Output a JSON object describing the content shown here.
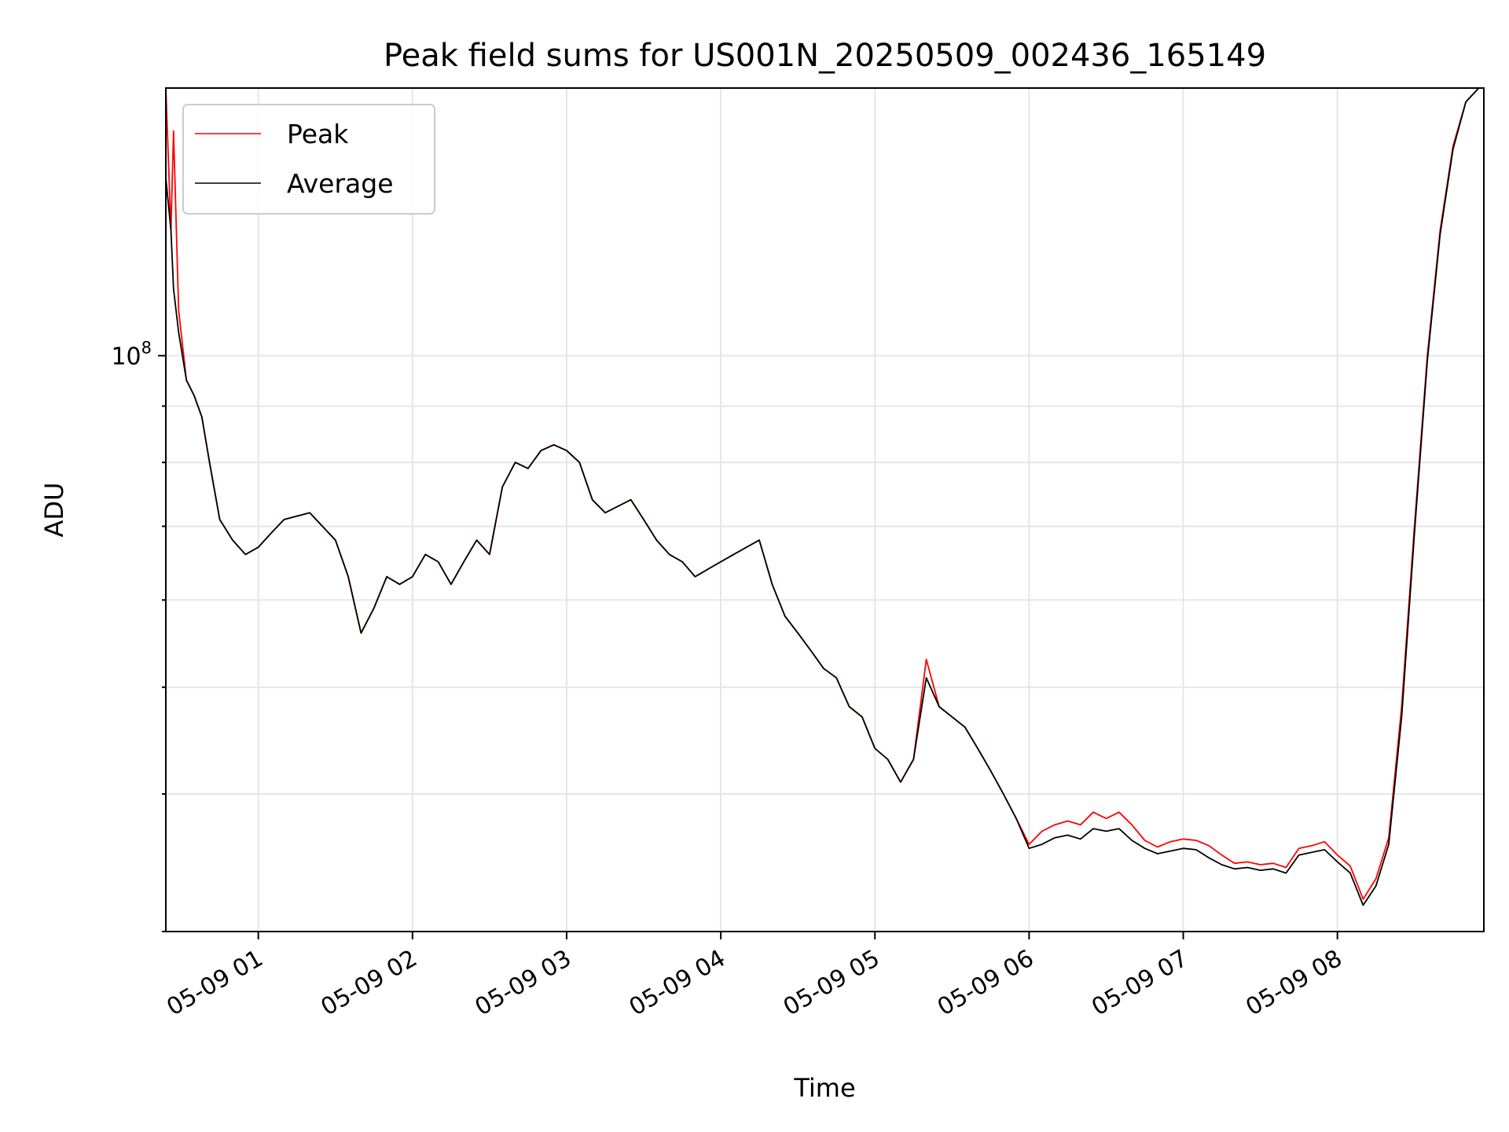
{
  "chart_data": {
    "type": "line",
    "title": "Peak field sums for US001N_20250509_002436_165149",
    "xlabel": "Time",
    "ylabel": "ADU",
    "yscale": "log",
    "grid": true,
    "legend_placement": "top-left",
    "xlim": [
      "2025-05-09 00:24",
      "2025-05-09 08:57"
    ],
    "ylim": [
      30000000,
      175000000
    ],
    "x_ticks": [
      "05-09 01",
      "05-09 02",
      "05-09 03",
      "05-09 04",
      "05-09 05",
      "05-09 06",
      "05-09 07",
      "05-09 08"
    ],
    "y_ticks": [
      {
        "value": 100000000,
        "label": "10",
        "exponent": "8"
      }
    ],
    "series": [
      {
        "name": "Peak",
        "color": "#ff0000",
        "x": [
          "2025-05-09 00:24",
          "2025-05-09 00:26",
          "2025-05-09 00:27",
          "2025-05-09 00:29",
          "2025-05-09 00:32",
          "2025-05-09 00:35",
          "2025-05-09 00:38",
          "2025-05-09 00:41",
          "2025-05-09 00:45",
          "2025-05-09 00:50",
          "2025-05-09 00:55",
          "2025-05-09 01:00",
          "2025-05-09 01:05",
          "2025-05-09 01:10",
          "2025-05-09 01:20",
          "2025-05-09 01:30",
          "2025-05-09 01:35",
          "2025-05-09 01:40",
          "2025-05-09 01:45",
          "2025-05-09 01:50",
          "2025-05-09 01:55",
          "2025-05-09 02:00",
          "2025-05-09 02:05",
          "2025-05-09 02:10",
          "2025-05-09 02:15",
          "2025-05-09 02:20",
          "2025-05-09 02:25",
          "2025-05-09 02:30",
          "2025-05-09 02:35",
          "2025-05-09 02:40",
          "2025-05-09 02:45",
          "2025-05-09 02:50",
          "2025-05-09 02:55",
          "2025-05-09 03:00",
          "2025-05-09 03:05",
          "2025-05-09 03:10",
          "2025-05-09 03:15",
          "2025-05-09 03:20",
          "2025-05-09 03:25",
          "2025-05-09 03:30",
          "2025-05-09 03:35",
          "2025-05-09 03:40",
          "2025-05-09 03:45",
          "2025-05-09 03:50",
          "2025-05-09 03:55",
          "2025-05-09 04:00",
          "2025-05-09 04:05",
          "2025-05-09 04:10",
          "2025-05-09 04:15",
          "2025-05-09 04:20",
          "2025-05-09 04:25",
          "2025-05-09 04:30",
          "2025-05-09 04:35",
          "2025-05-09 04:40",
          "2025-05-09 04:45",
          "2025-05-09 04:50",
          "2025-05-09 04:55",
          "2025-05-09 05:00",
          "2025-05-09 05:05",
          "2025-05-09 05:10",
          "2025-05-09 05:15",
          "2025-05-09 05:20",
          "2025-05-09 05:25",
          "2025-05-09 05:30",
          "2025-05-09 05:35",
          "2025-05-09 05:40",
          "2025-05-09 05:45",
          "2025-05-09 05:50",
          "2025-05-09 05:55",
          "2025-05-09 06:00",
          "2025-05-09 06:05",
          "2025-05-09 06:10",
          "2025-05-09 06:15",
          "2025-05-09 06:20",
          "2025-05-09 06:25",
          "2025-05-09 06:30",
          "2025-05-09 06:35",
          "2025-05-09 06:40",
          "2025-05-09 06:45",
          "2025-05-09 06:50",
          "2025-05-09 06:55",
          "2025-05-09 07:00",
          "2025-05-09 07:05",
          "2025-05-09 07:10",
          "2025-05-09 07:15",
          "2025-05-09 07:20",
          "2025-05-09 07:25",
          "2025-05-09 07:30",
          "2025-05-09 07:35",
          "2025-05-09 07:40",
          "2025-05-09 07:45",
          "2025-05-09 07:50",
          "2025-05-09 07:55",
          "2025-05-09 08:00",
          "2025-05-09 08:05",
          "2025-05-09 08:10",
          "2025-05-09 08:15",
          "2025-05-09 08:20",
          "2025-05-09 08:25",
          "2025-05-09 08:30",
          "2025-05-09 08:35",
          "2025-05-09 08:40",
          "2025-05-09 08:45",
          "2025-05-09 08:50",
          "2025-05-09 08:55",
          "2025-05-09 08:57"
        ],
        "y": [
          175000000,
          130000000,
          160000000,
          110000000,
          95000000,
          92000000,
          88000000,
          80000000,
          71000000,
          68000000,
          66000000,
          67000000,
          69000000,
          71000000,
          72000000,
          68000000,
          63000000,
          56000000,
          59000000,
          63000000,
          62000000,
          63000000,
          66000000,
          65000000,
          62000000,
          65000000,
          68000000,
          66000000,
          76000000,
          80000000,
          79000000,
          82000000,
          83000000,
          82000000,
          80000000,
          74000000,
          72000000,
          73000000,
          74000000,
          71000000,
          68000000,
          66000000,
          65000000,
          63000000,
          64000000,
          65000000,
          66000000,
          67000000,
          68000000,
          62000000,
          58000000,
          56000000,
          54000000,
          52000000,
          51000000,
          48000000,
          47000000,
          44000000,
          43000000,
          41000000,
          43000000,
          53000000,
          48000000,
          47000000,
          46000000,
          44000000,
          42000000,
          40000000,
          38000000,
          36000000,
          37000000,
          37500000,
          37800000,
          37500000,
          38500000,
          38000000,
          38500000,
          37500000,
          36300000,
          35800000,
          36200000,
          36400000,
          36300000,
          35900000,
          35200000,
          34600000,
          34700000,
          34500000,
          34600000,
          34300000,
          35700000,
          35900000,
          36200000,
          35200000,
          34400000,
          32100000,
          33500000,
          36500000,
          48000000,
          70000000,
          100000000,
          130000000,
          155000000,
          170000000,
          175000000,
          175000000
        ]
      },
      {
        "name": "Average",
        "color": "#000000",
        "x": [
          "2025-05-09 00:24",
          "2025-05-09 00:26",
          "2025-05-09 00:27",
          "2025-05-09 00:29",
          "2025-05-09 00:32",
          "2025-05-09 00:35",
          "2025-05-09 00:38",
          "2025-05-09 00:41",
          "2025-05-09 00:45",
          "2025-05-09 00:50",
          "2025-05-09 00:55",
          "2025-05-09 01:00",
          "2025-05-09 01:05",
          "2025-05-09 01:10",
          "2025-05-09 01:20",
          "2025-05-09 01:30",
          "2025-05-09 01:35",
          "2025-05-09 01:40",
          "2025-05-09 01:45",
          "2025-05-09 01:50",
          "2025-05-09 01:55",
          "2025-05-09 02:00",
          "2025-05-09 02:05",
          "2025-05-09 02:10",
          "2025-05-09 02:15",
          "2025-05-09 02:20",
          "2025-05-09 02:25",
          "2025-05-09 02:30",
          "2025-05-09 02:35",
          "2025-05-09 02:40",
          "2025-05-09 02:45",
          "2025-05-09 02:50",
          "2025-05-09 02:55",
          "2025-05-09 03:00",
          "2025-05-09 03:05",
          "2025-05-09 03:10",
          "2025-05-09 03:15",
          "2025-05-09 03:20",
          "2025-05-09 03:25",
          "2025-05-09 03:30",
          "2025-05-09 03:35",
          "2025-05-09 03:40",
          "2025-05-09 03:45",
          "2025-05-09 03:50",
          "2025-05-09 03:55",
          "2025-05-09 04:00",
          "2025-05-09 04:05",
          "2025-05-09 04:10",
          "2025-05-09 04:15",
          "2025-05-09 04:20",
          "2025-05-09 04:25",
          "2025-05-09 04:30",
          "2025-05-09 04:35",
          "2025-05-09 04:40",
          "2025-05-09 04:45",
          "2025-05-09 04:50",
          "2025-05-09 04:55",
          "2025-05-09 05:00",
          "2025-05-09 05:05",
          "2025-05-09 05:10",
          "2025-05-09 05:15",
          "2025-05-09 05:20",
          "2025-05-09 05:25",
          "2025-05-09 05:30",
          "2025-05-09 05:35",
          "2025-05-09 05:40",
          "2025-05-09 05:45",
          "2025-05-09 05:50",
          "2025-05-09 05:55",
          "2025-05-09 06:00",
          "2025-05-09 06:05",
          "2025-05-09 06:10",
          "2025-05-09 06:15",
          "2025-05-09 06:20",
          "2025-05-09 06:25",
          "2025-05-09 06:30",
          "2025-05-09 06:35",
          "2025-05-09 06:40",
          "2025-05-09 06:45",
          "2025-05-09 06:50",
          "2025-05-09 06:55",
          "2025-05-09 07:00",
          "2025-05-09 07:05",
          "2025-05-09 07:10",
          "2025-05-09 07:15",
          "2025-05-09 07:20",
          "2025-05-09 07:25",
          "2025-05-09 07:30",
          "2025-05-09 07:35",
          "2025-05-09 07:40",
          "2025-05-09 07:45",
          "2025-05-09 07:50",
          "2025-05-09 07:55",
          "2025-05-09 08:00",
          "2025-05-09 08:05",
          "2025-05-09 08:10",
          "2025-05-09 08:15",
          "2025-05-09 08:20",
          "2025-05-09 08:25",
          "2025-05-09 08:30",
          "2025-05-09 08:35",
          "2025-05-09 08:40",
          "2025-05-09 08:45",
          "2025-05-09 08:50",
          "2025-05-09 08:55",
          "2025-05-09 08:57"
        ],
        "y": [
          145000000,
          130000000,
          115000000,
          105000000,
          95000000,
          92000000,
          88000000,
          80000000,
          71000000,
          68000000,
          66000000,
          67000000,
          69000000,
          71000000,
          72000000,
          68000000,
          63000000,
          56000000,
          59000000,
          63000000,
          62000000,
          63000000,
          66000000,
          65000000,
          62000000,
          65000000,
          68000000,
          66000000,
          76000000,
          80000000,
          79000000,
          82000000,
          83000000,
          82000000,
          80000000,
          74000000,
          72000000,
          73000000,
          74000000,
          71000000,
          68000000,
          66000000,
          65000000,
          63000000,
          64000000,
          65000000,
          66000000,
          67000000,
          68000000,
          62000000,
          58000000,
          56000000,
          54000000,
          52000000,
          51000000,
          48000000,
          47000000,
          44000000,
          43000000,
          41000000,
          43000000,
          51000000,
          48000000,
          47000000,
          46000000,
          44000000,
          42000000,
          40000000,
          38000000,
          35700000,
          36000000,
          36500000,
          36700000,
          36400000,
          37200000,
          37000000,
          37200000,
          36300000,
          35700000,
          35300000,
          35500000,
          35700000,
          35600000,
          35000000,
          34500000,
          34200000,
          34300000,
          34100000,
          34200000,
          33900000,
          35200000,
          35400000,
          35600000,
          34700000,
          33900000,
          31700000,
          33000000,
          36000000,
          47000000,
          69000000,
          99000000,
          129000000,
          154000000,
          170000000,
          175000000,
          175000000
        ]
      }
    ]
  }
}
